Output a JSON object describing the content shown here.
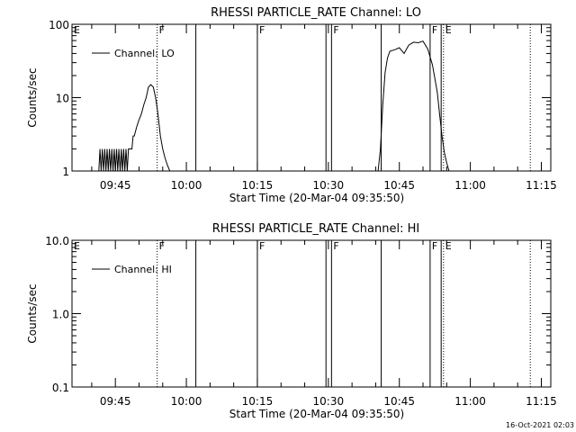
{
  "footer": {
    "timestamp": "16-Oct-2021 02:03"
  },
  "chart_data": [
    {
      "type": "line",
      "title": "RHESSI PARTICLE_RATE Channel: LO",
      "xlabel": "Start Time (20-Mar-04 09:35:50)",
      "ylabel": "Counts/sec",
      "y_scale": "log",
      "ylim": [
        1,
        100
      ],
      "y_ticks": [
        {
          "value": 1,
          "label": "1"
        },
        {
          "value": 10,
          "label": "10"
        },
        {
          "value": 100,
          "label": "100"
        }
      ],
      "xlim": [
        "09:35:50",
        "11:17:00"
      ],
      "x_ticks": [
        "09:45",
        "10:00",
        "10:15",
        "10:30",
        "10:45",
        "11:00",
        "11:15"
      ],
      "legend": {
        "placement": "top-left",
        "entries": [
          "Channel: LO"
        ]
      },
      "series": [
        {
          "name": "Channel: LO",
          "segments": [
            {
              "x": [
                "09:41:30",
                "09:41:45",
                "09:42:00",
                "09:42:15",
                "09:42:30",
                "09:42:45",
                "09:43:00",
                "09:43:15",
                "09:43:30",
                "09:43:45",
                "09:44:00",
                "09:44:15",
                "09:44:30",
                "09:44:45",
                "09:45:00",
                "09:45:15",
                "09:45:30",
                "09:45:45",
                "09:46:00",
                "09:46:15",
                "09:46:30",
                "09:46:45",
                "09:47:00",
                "09:47:15",
                "09:47:30",
                "09:47:45",
                "09:48:00",
                "09:48:15",
                "09:48:30",
                "09:48:45",
                "09:49:00",
                "09:49:30",
                "09:50:00",
                "09:50:30",
                "09:51:00",
                "09:51:30",
                "09:52:00",
                "09:52:30",
                "09:53:00",
                "09:53:30",
                "09:54:00",
                "09:54:30",
                "09:55:00",
                "09:55:30",
                "09:56:00",
                "09:56:30",
                "09:57:00"
              ],
              "y": [
                1,
                2,
                1,
                2,
                1,
                2,
                1,
                2,
                1,
                2,
                1,
                2,
                1,
                2,
                1,
                2,
                1,
                2,
                1,
                2,
                1,
                2,
                1,
                2,
                1,
                2,
                2,
                2,
                2,
                3,
                3,
                4,
                5,
                6,
                8,
                10,
                14,
                15,
                14,
                10,
                6,
                3,
                2,
                1.5,
                1.2,
                1,
                1
              ]
            },
            {
              "x": [
                "10:40:30",
                "10:41:00",
                "10:41:30",
                "10:42:00",
                "10:42:30",
                "10:43:00",
                "10:44:00",
                "10:45:00",
                "10:46:00",
                "10:47:00",
                "10:48:00",
                "10:49:00",
                "10:50:00",
                "10:51:00",
                "10:52:00",
                "10:53:00",
                "10:53:30",
                "10:54:00",
                "10:54:30",
                "10:55:00",
                "10:55:30"
              ],
              "y": [
                1,
                2,
                8,
                22,
                35,
                43,
                45,
                48,
                40,
                52,
                57,
                56,
                59,
                46,
                28,
                12,
                6,
                3,
                1.8,
                1.3,
                1
              ]
            }
          ]
        }
      ],
      "flags": [
        {
          "x": "09:53:50",
          "style": "dotted",
          "label": "F"
        },
        {
          "x": "10:02:00",
          "style": "solid",
          "label": ""
        },
        {
          "x": "10:15:00",
          "style": "solid",
          "label": "F"
        },
        {
          "x": "10:29:30",
          "style": "solid",
          "label": ""
        },
        {
          "x": "10:30:40",
          "style": "solid",
          "label": "F"
        },
        {
          "x": "10:41:10",
          "style": "solid",
          "label": ""
        },
        {
          "x": "10:51:30",
          "style": "solid",
          "label": "F"
        },
        {
          "x": "10:53:50",
          "style": "solid",
          "label": ""
        },
        {
          "x": "10:54:20",
          "style": "dotted",
          "label": "E"
        },
        {
          "x": "11:12:40",
          "style": "dotted",
          "label": ""
        }
      ],
      "corner_marker": "E"
    },
    {
      "type": "line",
      "title": "RHESSI PARTICLE_RATE Channel: HI",
      "xlabel": "Start Time (20-Mar-04 09:35:50)",
      "ylabel": "Counts/sec",
      "y_scale": "log",
      "ylim": [
        0.1,
        10
      ],
      "y_ticks": [
        {
          "value": 0.1,
          "label": "0.1"
        },
        {
          "value": 1,
          "label": "1.0"
        },
        {
          "value": 10,
          "label": "10.0"
        }
      ],
      "xlim": [
        "09:35:50",
        "11:17:00"
      ],
      "x_ticks": [
        "09:45",
        "10:00",
        "10:15",
        "10:30",
        "10:45",
        "11:00",
        "11:15"
      ],
      "legend": {
        "placement": "top-left",
        "entries": [
          "Channel: HI"
        ]
      },
      "series": [
        {
          "name": "Channel: HI",
          "segments": []
        }
      ],
      "flags": [
        {
          "x": "09:53:50",
          "style": "dotted",
          "label": "F"
        },
        {
          "x": "10:02:00",
          "style": "solid",
          "label": ""
        },
        {
          "x": "10:15:00",
          "style": "solid",
          "label": "F"
        },
        {
          "x": "10:29:30",
          "style": "solid",
          "label": ""
        },
        {
          "x": "10:30:40",
          "style": "solid",
          "label": "F"
        },
        {
          "x": "10:41:10",
          "style": "solid",
          "label": ""
        },
        {
          "x": "10:51:30",
          "style": "solid",
          "label": "F"
        },
        {
          "x": "10:53:50",
          "style": "solid",
          "label": ""
        },
        {
          "x": "10:54:20",
          "style": "dotted",
          "label": "E"
        },
        {
          "x": "11:12:40",
          "style": "dotted",
          "label": ""
        }
      ],
      "corner_marker": "E"
    }
  ]
}
